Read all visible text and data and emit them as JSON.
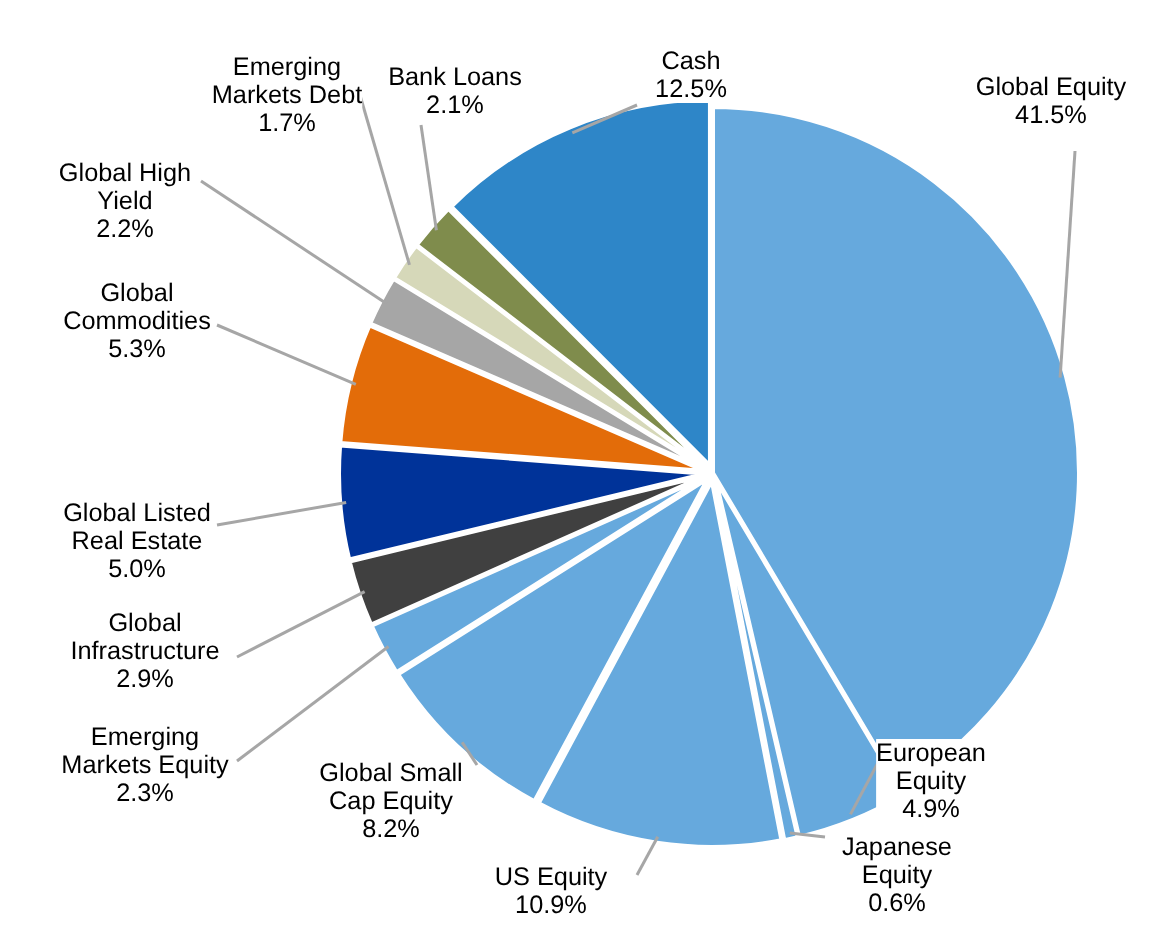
{
  "chart_data": {
    "type": "pie",
    "categories": [
      "Global Equity",
      "European\nEquity",
      "Japanese\nEquity",
      "US Equity",
      "Global Small\nCap Equity",
      "Emerging\nMarkets Equity",
      "Global\nInfrastructure",
      "Global Listed\nReal Estate",
      "Global\nCommodities",
      "Global High\nYield",
      "Emerging\nMarkets Debt",
      "Bank Loans",
      "Cash"
    ],
    "values": [
      41.5,
      4.9,
      0.6,
      10.9,
      8.2,
      2.3,
      2.9,
      5.0,
      5.3,
      2.2,
      1.7,
      2.1,
      12.5
    ],
    "value_labels": [
      "41.5%",
      "4.9%",
      "0.6%",
      "10.9%",
      "8.2%",
      "2.3%",
      "2.9%",
      "5.0%",
      "5.3%",
      "2.2%",
      "1.7%",
      "2.1%",
      "12.5%"
    ],
    "colors": [
      "#66a9dd",
      "#66a9dd",
      "#66a9dd",
      "#66a9dd",
      "#66a9dd",
      "#66a9dd",
      "#404040",
      "#003399",
      "#e36c09",
      "#a6a6a6",
      "#d6d8b9",
      "#7f8c4c",
      "#2e86c8"
    ]
  }
}
